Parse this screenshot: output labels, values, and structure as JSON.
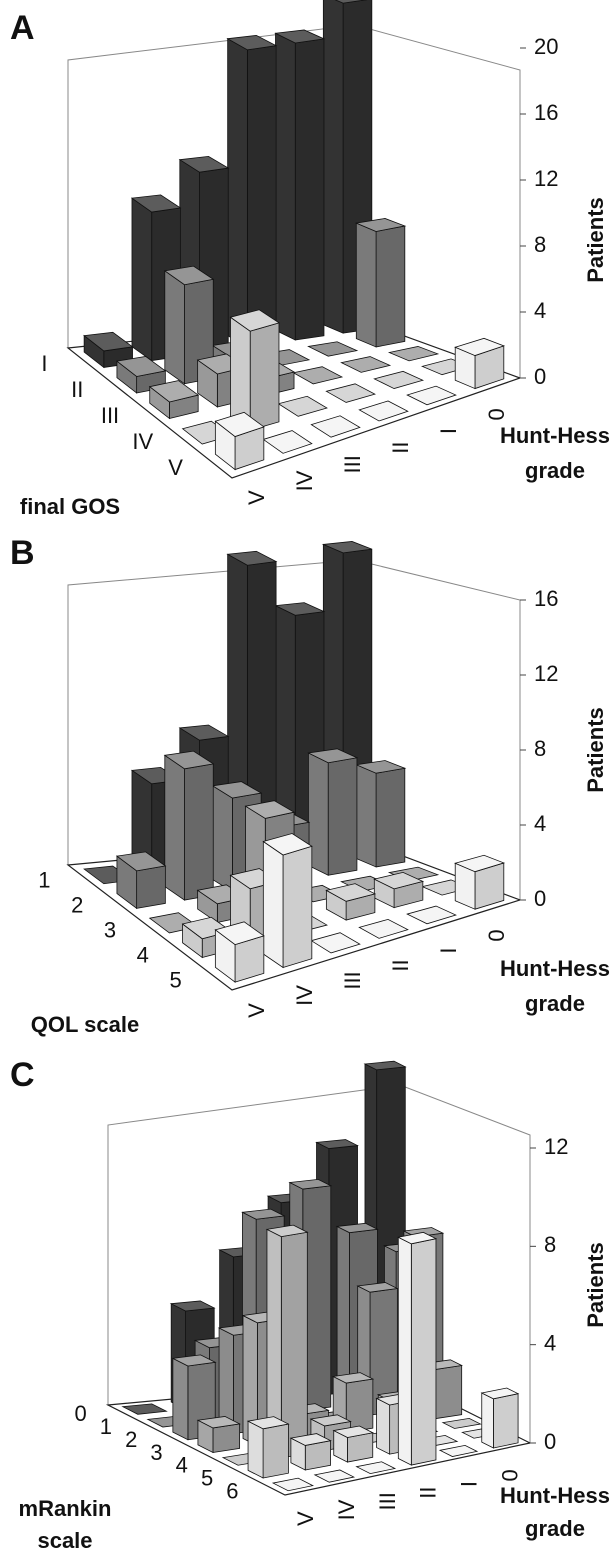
{
  "chart_data": [
    {
      "type": "bar3d",
      "label": "A",
      "x_categories": [
        "V",
        "IV",
        "III",
        "II",
        "I",
        "0"
      ],
      "xlabel": [
        "Hunt-Hess",
        "grade"
      ],
      "depth_label": [
        "final GOS"
      ],
      "zlabel": "Patients",
      "zlim": [
        0,
        20
      ],
      "zticks": [
        0,
        4,
        8,
        12,
        16,
        20
      ],
      "series": [
        {
          "name": "I",
          "color": "#333333",
          "values": [
            1,
            9,
            11,
            18,
            18,
            20
          ]
        },
        {
          "name": "II",
          "color": "#7a7a7a",
          "values": [
            1,
            6,
            1,
            0,
            0,
            7
          ]
        },
        {
          "name": "III",
          "color": "#999999",
          "values": [
            1,
            2,
            1,
            0,
            0,
            0
          ]
        },
        {
          "name": "IV",
          "color": "#cccccc",
          "values": [
            0,
            6,
            0,
            0,
            0,
            0
          ]
        },
        {
          "name": "V",
          "color": "#f2f2f2",
          "values": [
            2,
            0,
            0,
            0,
            0,
            2
          ]
        }
      ]
    },
    {
      "type": "bar3d",
      "label": "B",
      "x_categories": [
        "V",
        "IV",
        "III",
        "II",
        "I",
        "0"
      ],
      "xlabel": [
        "Hunt-Hess",
        "grade"
      ],
      "depth_label": [
        "QOL scale"
      ],
      "zlabel": "Patients",
      "zlim": [
        0,
        16
      ],
      "zticks": [
        0,
        4,
        8,
        12,
        16
      ],
      "series": [
        {
          "name": "1",
          "color": "#333333",
          "values": [
            0,
            5,
            7,
            16,
            13,
            16
          ]
        },
        {
          "name": "2",
          "color": "#7a7a7a",
          "values": [
            2,
            7,
            5,
            3,
            6,
            5
          ]
        },
        {
          "name": "3",
          "color": "#999999",
          "values": [
            0,
            1,
            5,
            0,
            0,
            0
          ]
        },
        {
          "name": "4",
          "color": "#cccccc",
          "values": [
            1,
            3,
            0,
            1,
            1,
            0
          ]
        },
        {
          "name": "5",
          "color": "#f2f2f2",
          "values": [
            2,
            6,
            0,
            0,
            0,
            2
          ]
        }
      ]
    },
    {
      "type": "bar3d",
      "label": "C",
      "x_categories": [
        "V",
        "IV",
        "III",
        "II",
        "I",
        "0"
      ],
      "xlabel": [
        "Hunt-Hess",
        "grade"
      ],
      "depth_label": [
        "mRankin",
        "scale"
      ],
      "zlabel": "Patients",
      "zlim": [
        0,
        12
      ],
      "zticks": [
        0,
        4,
        8,
        12
      ],
      "series": [
        {
          "name": "0",
          "color": "#333333",
          "values": [
            0,
            4,
            6,
            8,
            10,
            13
          ]
        },
        {
          "name": "1",
          "color": "#7a7a7a",
          "values": [
            0,
            3,
            8,
            9,
            7,
            6
          ]
        },
        {
          "name": "2",
          "color": "#8c8c8c",
          "values": [
            3,
            4,
            3,
            0,
            5,
            7
          ]
        },
        {
          "name": "3",
          "color": "#a6a6a6",
          "values": [
            1,
            5,
            1,
            2,
            1,
            2
          ]
        },
        {
          "name": "4",
          "color": "#bfbfbf",
          "values": [
            0,
            9,
            1,
            0,
            0,
            0
          ]
        },
        {
          "name": "5",
          "color": "#dddddd",
          "values": [
            2,
            1,
            1,
            2,
            0,
            0
          ]
        },
        {
          "name": "6",
          "color": "#f2f2f2",
          "values": [
            0,
            0,
            0,
            9,
            0,
            2
          ]
        }
      ]
    }
  ]
}
